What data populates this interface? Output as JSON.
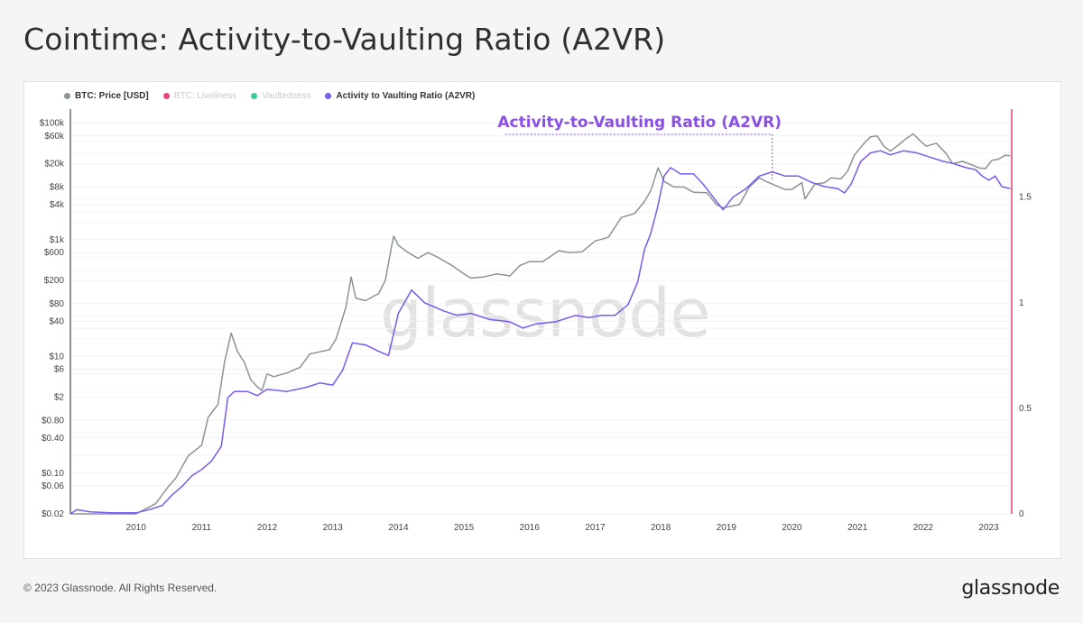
{
  "page": {
    "title": "Cointime: Activity-to-Vaulting Ratio (A2VR)",
    "copyright": "© 2023 Glassnode. All Rights Reserved.",
    "logo": "glassnode",
    "watermark": "glassnode"
  },
  "colors": {
    "price": "#8a9591",
    "a2vr": "#7a5af0",
    "liveliness": "#e8476f",
    "vaultedness": "#3ec7a2",
    "right_axis": "#e0426a",
    "annotation": "#8a4fe6"
  },
  "legend": [
    {
      "label": "BTC: Price [USD]",
      "color": "#8a9591",
      "active": true
    },
    {
      "label": "BTC: Liveliness",
      "color": "#e8476f",
      "active": false
    },
    {
      "label": "Vaultedness",
      "color": "#3ec7a2",
      "active": false
    },
    {
      "label": "Activity to Vaulting Ratio (A2VR)",
      "color": "#7a5af0",
      "active": true
    }
  ],
  "chart_data": {
    "type": "line",
    "annotation": "Activity-to-Vaulting Ratio (A2VR)",
    "annotation_x": 2019.7,
    "x_ticks": [
      2010,
      2011,
      2012,
      2013,
      2014,
      2015,
      2016,
      2017,
      2018,
      2019,
      2020,
      2021,
      2022,
      2023
    ],
    "xlim": [
      2009.0,
      2023.35
    ],
    "left_axis": {
      "scale": "log",
      "ylim": [
        0.02,
        150000
      ],
      "tick_values": [
        100000,
        60000,
        20000,
        8000,
        4000,
        1000,
        600,
        200,
        80,
        40,
        10,
        6,
        2,
        0.8,
        0.4,
        0.1,
        0.06,
        0.02
      ],
      "tick_labels": [
        "$100k",
        "$60k",
        "$20k",
        "$8k",
        "$4k",
        "$1k",
        "$600",
        "$200",
        "$80",
        "$40",
        "$10",
        "$6",
        "$2",
        "$0.80",
        "$0.40",
        "$0.10",
        "$0.06",
        "$0.02"
      ]
    },
    "right_axis": {
      "scale": "linear",
      "ylim": [
        0,
        1.9
      ],
      "tick_values": [
        0,
        0.5,
        1,
        1.5
      ],
      "tick_labels": [
        "0",
        "0.5",
        "1",
        "1.5"
      ]
    },
    "grid": true,
    "series": [
      {
        "name": "BTC: Price [USD]",
        "axis": "left",
        "points": [
          [
            2009.0,
            0.02
          ],
          [
            2009.6,
            0.02
          ],
          [
            2010.0,
            0.02
          ],
          [
            2010.3,
            0.03
          ],
          [
            2010.5,
            0.06
          ],
          [
            2010.6,
            0.08
          ],
          [
            2010.8,
            0.2
          ],
          [
            2011.0,
            0.3
          ],
          [
            2011.1,
            0.9
          ],
          [
            2011.25,
            1.5
          ],
          [
            2011.35,
            8
          ],
          [
            2011.45,
            25
          ],
          [
            2011.55,
            12
          ],
          [
            2011.65,
            8
          ],
          [
            2011.75,
            4
          ],
          [
            2011.85,
            3
          ],
          [
            2011.92,
            2.6
          ],
          [
            2012.0,
            5
          ],
          [
            2012.1,
            4.5
          ],
          [
            2012.3,
            5.2
          ],
          [
            2012.5,
            6.5
          ],
          [
            2012.65,
            11
          ],
          [
            2012.8,
            12
          ],
          [
            2012.95,
            13
          ],
          [
            2013.05,
            20
          ],
          [
            2013.2,
            70
          ],
          [
            2013.28,
            230
          ],
          [
            2013.35,
            100
          ],
          [
            2013.5,
            90
          ],
          [
            2013.7,
            120
          ],
          [
            2013.8,
            200
          ],
          [
            2013.9,
            800
          ],
          [
            2013.93,
            1150
          ],
          [
            2014.0,
            800
          ],
          [
            2014.15,
            600
          ],
          [
            2014.3,
            480
          ],
          [
            2014.45,
            600
          ],
          [
            2014.6,
            500
          ],
          [
            2014.8,
            370
          ],
          [
            2015.0,
            260
          ],
          [
            2015.1,
            220
          ],
          [
            2015.3,
            230
          ],
          [
            2015.5,
            260
          ],
          [
            2015.7,
            240
          ],
          [
            2015.85,
            360
          ],
          [
            2016.0,
            420
          ],
          [
            2016.2,
            420
          ],
          [
            2016.45,
            650
          ],
          [
            2016.6,
            600
          ],
          [
            2016.8,
            620
          ],
          [
            2017.0,
            950
          ],
          [
            2017.2,
            1100
          ],
          [
            2017.4,
            2400
          ],
          [
            2017.6,
            2800
          ],
          [
            2017.75,
            4500
          ],
          [
            2017.85,
            7000
          ],
          [
            2017.96,
            17000
          ],
          [
            2018.05,
            10000
          ],
          [
            2018.2,
            8000
          ],
          [
            2018.35,
            8000
          ],
          [
            2018.5,
            6500
          ],
          [
            2018.7,
            6400
          ],
          [
            2018.85,
            4000
          ],
          [
            2018.95,
            3500
          ],
          [
            2019.0,
            3600
          ],
          [
            2019.2,
            4000
          ],
          [
            2019.35,
            8000
          ],
          [
            2019.5,
            11500
          ],
          [
            2019.6,
            10000
          ],
          [
            2019.75,
            8500
          ],
          [
            2019.9,
            7200
          ],
          [
            2020.0,
            7300
          ],
          [
            2020.15,
            9500
          ],
          [
            2020.2,
            5000
          ],
          [
            2020.35,
            9000
          ],
          [
            2020.5,
            9500
          ],
          [
            2020.6,
            11500
          ],
          [
            2020.75,
            11000
          ],
          [
            2020.85,
            15000
          ],
          [
            2020.95,
            28000
          ],
          [
            2021.1,
            45000
          ],
          [
            2021.2,
            58000
          ],
          [
            2021.3,
            60000
          ],
          [
            2021.4,
            40000
          ],
          [
            2021.5,
            33000
          ],
          [
            2021.6,
            40000
          ],
          [
            2021.75,
            55000
          ],
          [
            2021.85,
            65000
          ],
          [
            2021.95,
            50000
          ],
          [
            2022.05,
            40000
          ],
          [
            2022.2,
            45000
          ],
          [
            2022.35,
            30000
          ],
          [
            2022.45,
            20000
          ],
          [
            2022.6,
            22000
          ],
          [
            2022.75,
            19000
          ],
          [
            2022.85,
            17000
          ],
          [
            2022.95,
            16500
          ],
          [
            2023.05,
            23000
          ],
          [
            2023.15,
            24000
          ],
          [
            2023.25,
            28000
          ],
          [
            2023.33,
            27500
          ]
        ]
      },
      {
        "name": "Activity to Vaulting Ratio (A2VR)",
        "axis": "right",
        "points": [
          [
            2009.0,
            0.0
          ],
          [
            2009.1,
            0.02
          ],
          [
            2009.3,
            0.01
          ],
          [
            2009.6,
            0.005
          ],
          [
            2010.0,
            0.005
          ],
          [
            2010.2,
            0.02
          ],
          [
            2010.4,
            0.04
          ],
          [
            2010.55,
            0.09
          ],
          [
            2010.7,
            0.13
          ],
          [
            2010.85,
            0.18
          ],
          [
            2011.0,
            0.21
          ],
          [
            2011.15,
            0.25
          ],
          [
            2011.3,
            0.32
          ],
          [
            2011.4,
            0.55
          ],
          [
            2011.5,
            0.58
          ],
          [
            2011.7,
            0.58
          ],
          [
            2011.85,
            0.56
          ],
          [
            2012.0,
            0.59
          ],
          [
            2012.3,
            0.58
          ],
          [
            2012.6,
            0.6
          ],
          [
            2012.8,
            0.62
          ],
          [
            2013.0,
            0.61
          ],
          [
            2013.15,
            0.68
          ],
          [
            2013.3,
            0.81
          ],
          [
            2013.5,
            0.8
          ],
          [
            2013.7,
            0.77
          ],
          [
            2013.85,
            0.75
          ],
          [
            2014.0,
            0.95
          ],
          [
            2014.2,
            1.06
          ],
          [
            2014.4,
            1.0
          ],
          [
            2014.7,
            0.96
          ],
          [
            2014.9,
            0.94
          ],
          [
            2015.1,
            0.95
          ],
          [
            2015.4,
            0.92
          ],
          [
            2015.7,
            0.91
          ],
          [
            2015.9,
            0.88
          ],
          [
            2016.1,
            0.9
          ],
          [
            2016.4,
            0.91
          ],
          [
            2016.7,
            0.94
          ],
          [
            2016.9,
            0.93
          ],
          [
            2017.1,
            0.94
          ],
          [
            2017.3,
            0.94
          ],
          [
            2017.5,
            0.99
          ],
          [
            2017.65,
            1.1
          ],
          [
            2017.75,
            1.25
          ],
          [
            2017.85,
            1.33
          ],
          [
            2017.95,
            1.45
          ],
          [
            2018.05,
            1.6
          ],
          [
            2018.15,
            1.64
          ],
          [
            2018.3,
            1.61
          ],
          [
            2018.5,
            1.61
          ],
          [
            2018.65,
            1.56
          ],
          [
            2018.85,
            1.48
          ],
          [
            2018.95,
            1.44
          ],
          [
            2019.1,
            1.5
          ],
          [
            2019.3,
            1.54
          ],
          [
            2019.5,
            1.6
          ],
          [
            2019.7,
            1.62
          ],
          [
            2019.9,
            1.6
          ],
          [
            2020.1,
            1.6
          ],
          [
            2020.3,
            1.57
          ],
          [
            2020.5,
            1.55
          ],
          [
            2020.7,
            1.54
          ],
          [
            2020.8,
            1.52
          ],
          [
            2020.9,
            1.56
          ],
          [
            2021.05,
            1.67
          ],
          [
            2021.2,
            1.71
          ],
          [
            2021.35,
            1.72
          ],
          [
            2021.5,
            1.7
          ],
          [
            2021.7,
            1.72
          ],
          [
            2021.9,
            1.71
          ],
          [
            2022.1,
            1.69
          ],
          [
            2022.3,
            1.67
          ],
          [
            2022.45,
            1.66
          ],
          [
            2022.65,
            1.64
          ],
          [
            2022.8,
            1.63
          ],
          [
            2022.9,
            1.6
          ],
          [
            2023.0,
            1.58
          ],
          [
            2023.1,
            1.6
          ],
          [
            2023.2,
            1.55
          ],
          [
            2023.33,
            1.54
          ]
        ]
      }
    ]
  }
}
